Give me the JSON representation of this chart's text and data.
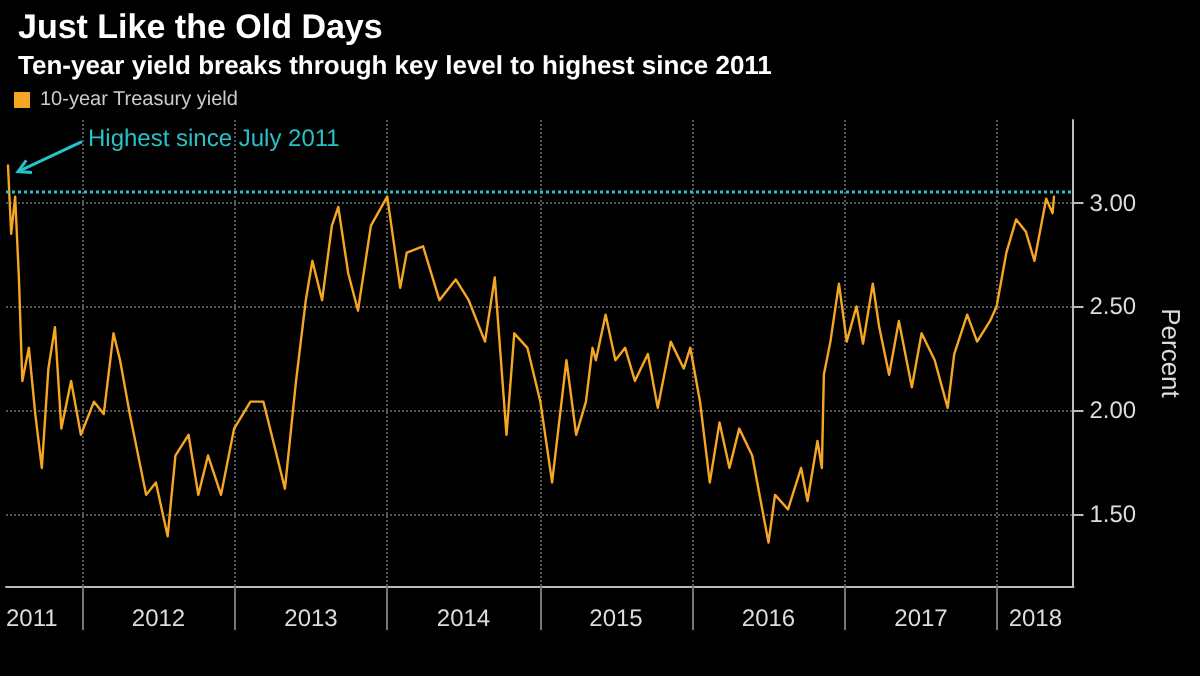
{
  "chart_data": {
    "type": "line",
    "title": "Just Like the Old Days",
    "subtitle": "Ten-year yield breaks through key level to highest since 2011",
    "ylabel": "Percent",
    "x": [
      2011.513,
      2011.534,
      2011.56,
      2011.585,
      2011.607,
      2011.65,
      2011.692,
      2011.735,
      2011.778,
      2011.821,
      2011.863,
      2011.927,
      2011.991,
      2012.077,
      2012.141,
      2012.205,
      2012.248,
      2012.312,
      2012.419,
      2012.483,
      2012.56,
      2012.611,
      2012.697,
      2012.761,
      2012.825,
      2012.91,
      2012.996,
      2013.103,
      2013.188,
      2013.252,
      2013.329,
      2013.402,
      2013.466,
      2013.509,
      2013.573,
      2013.637,
      2013.679,
      2013.744,
      2013.808,
      2013.893,
      2014.0,
      2014.085,
      2014.128,
      2014.235,
      2014.342,
      2014.449,
      2014.534,
      2014.641,
      2014.705,
      2014.782,
      2014.833,
      2014.919,
      2015.004,
      2015.081,
      2015.175,
      2015.239,
      2015.303,
      2015.346,
      2015.368,
      2015.432,
      2015.496,
      2015.56,
      2015.624,
      2015.709,
      2015.774,
      2015.859,
      2015.944,
      2015.987,
      2016.051,
      2016.115,
      2016.179,
      2016.244,
      2016.308,
      2016.393,
      2016.5,
      2016.543,
      2016.628,
      2016.714,
      2016.756,
      2016.821,
      2016.85,
      2016.863,
      2016.906,
      2016.962,
      2017.013,
      2017.077,
      2017.12,
      2017.184,
      2017.226,
      2017.291,
      2017.355,
      2017.44,
      2017.504,
      2017.59,
      2017.675,
      2017.718,
      2017.803,
      2017.868,
      2017.953,
      2017.996,
      2018.06,
      2018.124,
      2018.188,
      2018.244,
      2018.321,
      2018.363,
      2018.372
    ],
    "series": [
      {
        "name": "10-year Treasury yield",
        "color": "#f5a623",
        "values": [
          3.18,
          2.85,
          3.03,
          2.63,
          2.14,
          2.3,
          1.98,
          1.72,
          2.2,
          2.4,
          1.91,
          2.14,
          1.88,
          2.04,
          1.98,
          2.37,
          2.24,
          1.98,
          1.59,
          1.65,
          1.39,
          1.78,
          1.88,
          1.59,
          1.78,
          1.59,
          1.91,
          2.04,
          2.04,
          1.85,
          1.62,
          2.14,
          2.53,
          2.72,
          2.53,
          2.89,
          2.98,
          2.66,
          2.48,
          2.89,
          3.03,
          2.59,
          2.76,
          2.79,
          2.53,
          2.63,
          2.53,
          2.33,
          2.64,
          1.88,
          2.37,
          2.3,
          2.04,
          1.65,
          2.24,
          1.88,
          2.04,
          2.3,
          2.24,
          2.46,
          2.24,
          2.3,
          2.14,
          2.27,
          2.01,
          2.33,
          2.2,
          2.3,
          2.04,
          1.65,
          1.94,
          1.72,
          1.91,
          1.78,
          1.36,
          1.59,
          1.52,
          1.72,
          1.56,
          1.85,
          1.72,
          2.17,
          2.33,
          2.61,
          2.33,
          2.5,
          2.32,
          2.61,
          2.4,
          2.17,
          2.43,
          2.11,
          2.37,
          2.24,
          2.01,
          2.27,
          2.46,
          2.33,
          2.43,
          2.5,
          2.76,
          2.92,
          2.86,
          2.72,
          3.02,
          2.95,
          3.03
        ]
      }
    ],
    "xlim": [
      2011.5,
      2018.5
    ],
    "xticks": [
      {
        "value": 2011.5,
        "label": "2011"
      },
      {
        "value": 2012,
        "label": null
      },
      {
        "value": 2012.5,
        "label": "2012"
      },
      {
        "value": 2013,
        "label": null
      },
      {
        "value": 2013.5,
        "label": "2013"
      },
      {
        "value": 2014,
        "label": null
      },
      {
        "value": 2014.5,
        "label": "2014"
      },
      {
        "value": 2015,
        "label": null
      },
      {
        "value": 2015.5,
        "label": "2015"
      },
      {
        "value": 2016,
        "label": null
      },
      {
        "value": 2016.5,
        "label": "2016"
      },
      {
        "value": 2017,
        "label": null
      },
      {
        "value": 2017.5,
        "label": "2017"
      },
      {
        "value": 2018,
        "label": null
      },
      {
        "value": 2018.25,
        "label": "2018"
      }
    ],
    "ylim": [
      1.15,
      3.4
    ],
    "yticks": [
      {
        "value": 1.5,
        "label": "1.50"
      },
      {
        "value": 2.0,
        "label": "2.00"
      },
      {
        "value": 2.5,
        "label": "2.50"
      },
      {
        "value": 3.0,
        "label": "3.00"
      }
    ],
    "ref_lines": [
      {
        "axis": "y",
        "value": 3.05,
        "color": "#27c2c9",
        "line_style": "dotted"
      }
    ],
    "annotations": [
      {
        "text": "Highest since July 2011",
        "x": 2011.513,
        "y": 3.18
      }
    ],
    "grid": true,
    "legend": "top left",
    "marker": "none",
    "line_style": "solid"
  }
}
